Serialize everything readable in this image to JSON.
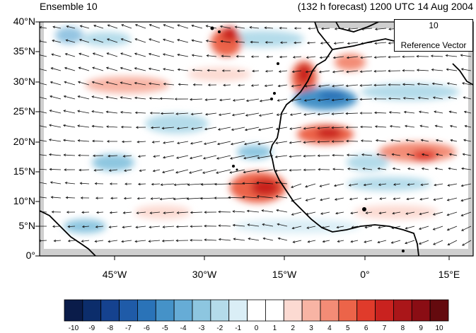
{
  "title_left": "Ensemble 10",
  "title_right": "(132 h forecast) 1200 UTC 14 Aug 2004",
  "lat_labels": [
    "40°N",
    "35°N",
    "30°N",
    "25°N",
    "20°N",
    "15°N",
    "10°N",
    "5°N",
    "0°"
  ],
  "lon_labels": [
    "45°W",
    "30°W",
    "15°W",
    "0°",
    "15°E"
  ],
  "reference_vector": {
    "value": "10",
    "label": "Reference Vector"
  },
  "colorbar": {
    "labels": [
      "-10",
      "-9",
      "-8",
      "-7",
      "-6",
      "-5",
      "-4",
      "-3",
      "-2",
      "-1",
      "0",
      "1",
      "2",
      "3",
      "4",
      "5",
      "6",
      "7",
      "8",
      "9",
      "10"
    ],
    "colors": [
      "#0a1c4a",
      "#0c2d6b",
      "#15428f",
      "#1f5ba8",
      "#2a73b8",
      "#4592c8",
      "#66acd6",
      "#8dc6e0",
      "#b4dbea",
      "#daeef6",
      "#ffffff",
      "#ffffff",
      "#fcdad2",
      "#f8b4a4",
      "#f38c76",
      "#ec6449",
      "#e03b2b",
      "#c9221f",
      "#aa1619",
      "#8a0d14",
      "#640a0e"
    ]
  },
  "colors": {
    "land_gray": "#cfcfcf",
    "coast": "#000000"
  }
}
